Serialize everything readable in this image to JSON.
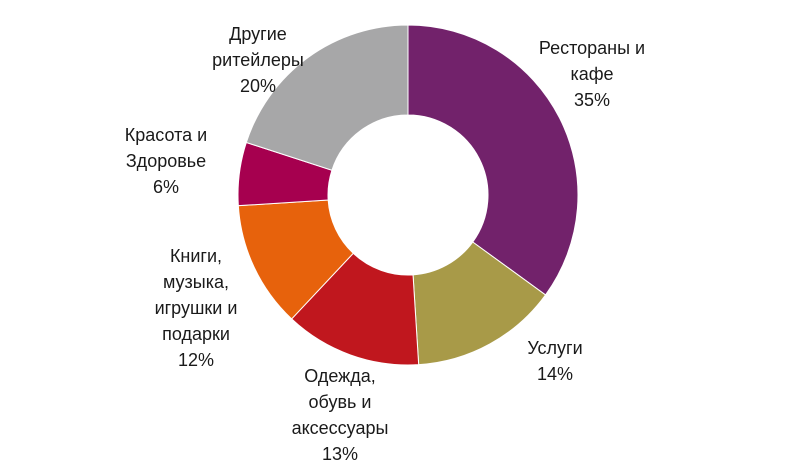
{
  "chart_data": {
    "type": "pie",
    "donut": true,
    "title": "",
    "slices": [
      {
        "label": [
          "Рестораны и",
          "кафе"
        ],
        "value": 35,
        "value_text": "35%",
        "color": "#72226b"
      },
      {
        "label": [
          "Услуги"
        ],
        "value": 14,
        "value_text": "14%",
        "color": "#a89a48"
      },
      {
        "label": [
          "Одежда,",
          "обувь и",
          "аксессуары"
        ],
        "value": 13,
        "value_text": "13%",
        "color": "#c0171e"
      },
      {
        "label": [
          "Книги,",
          "музыка,",
          "игрушки и",
          "подарки"
        ],
        "value": 12,
        "value_text": "12%",
        "color": "#e7620c"
      },
      {
        "label": [
          "Красота и",
          "Здоровье"
        ],
        "value": 6,
        "value_text": "6%",
        "color": "#a6004f"
      },
      {
        "label": [
          "Другие",
          "ритейлеры"
        ],
        "value": 20,
        "value_text": "20%",
        "color": "#a7a7a8"
      }
    ]
  }
}
